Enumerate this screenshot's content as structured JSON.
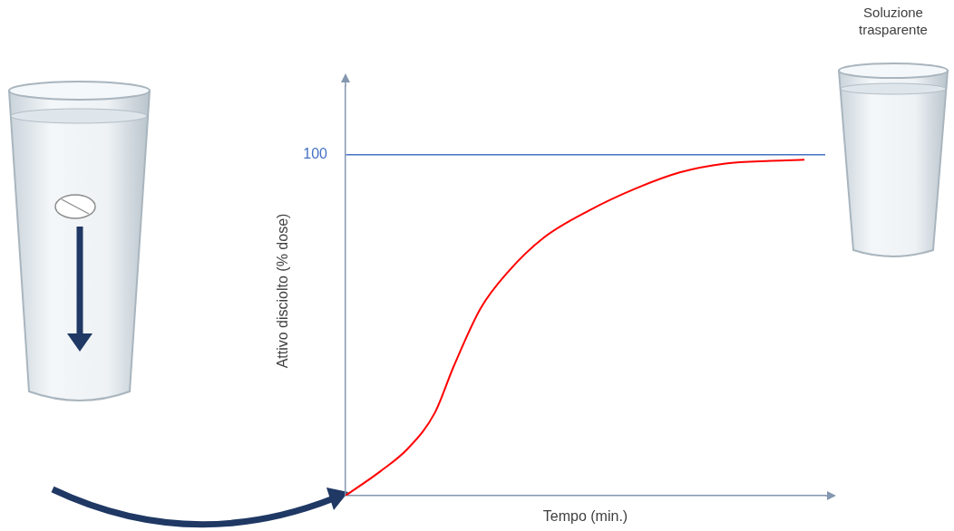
{
  "chart_data": {
    "type": "line",
    "x_label": "Tempo (min.)",
    "y_label": "Attivo disciolto (% dose)",
    "annotation": "Soluzione trasparente",
    "x": [
      0,
      4.4,
      7.8,
      11.2,
      13.5,
      16.9,
      20.3,
      24.8,
      30.5,
      36.2,
      41.8,
      47.5,
      53.2,
      57.4
    ],
    "values": [
      0,
      7.2,
      13.8,
      24.4,
      37.7,
      54.9,
      65.5,
      75.6,
      83.6,
      89.9,
      94.7,
      97.3,
      98.1,
      98.4
    ],
    "color": "#ff0000",
    "xlim": [
      0,
      60
    ],
    "ylim": [
      0,
      120
    ],
    "yticks": [
      100
    ],
    "grid": true,
    "tick_labels": "y"
  }
}
